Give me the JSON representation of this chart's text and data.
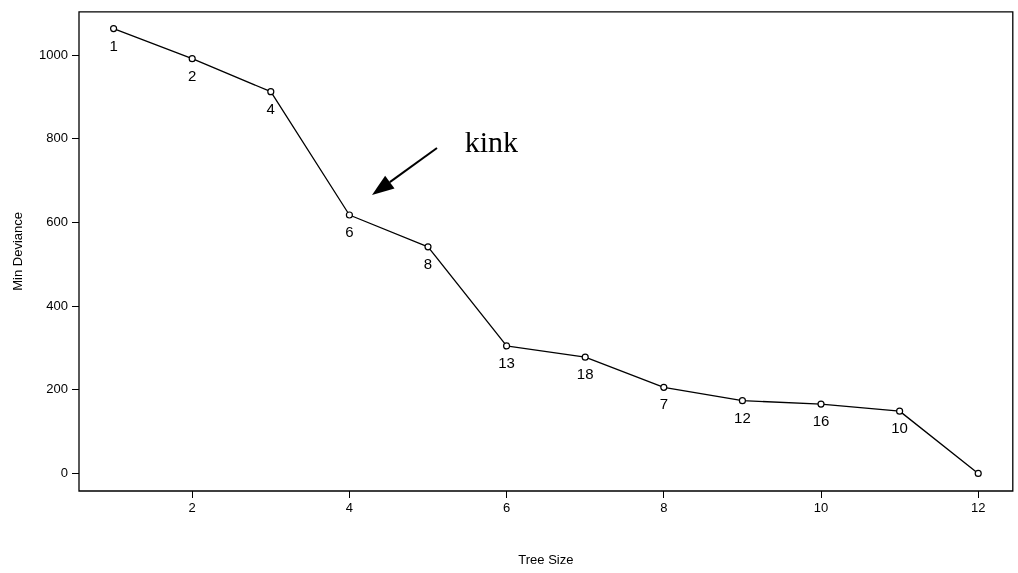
{
  "chart_data": {
    "type": "line",
    "xlabel": "Tree Size",
    "ylabel": "Min Deviance",
    "x": [
      1,
      2,
      3,
      4,
      5,
      6,
      7,
      8,
      9,
      10,
      11,
      12
    ],
    "series": [
      {
        "color": "#000000",
        "values": [
          1064,
          992,
          913,
          618,
          542,
          305,
          278,
          206,
          174,
          166,
          149,
          0
        ]
      }
    ],
    "xlim": [
      0.56,
      12.44
    ],
    "xticks": [
      2,
      4,
      6,
      8,
      10,
      12
    ],
    "ylim": [
      -42,
      1104
    ],
    "yticks": [
      0,
      200,
      400,
      600,
      800,
      1000
    ],
    "grid": false,
    "legend": false,
    "marker": "circle",
    "line_style": "solid",
    "annotations": [
      {
        "text": "1",
        "x": 1,
        "y": 1064
      },
      {
        "text": "2",
        "x": 2,
        "y": 992
      },
      {
        "text": "4",
        "x": 3,
        "y": 913
      },
      {
        "text": "6",
        "x": 4,
        "y": 618
      },
      {
        "text": "8",
        "x": 5,
        "y": 542
      },
      {
        "text": "13",
        "x": 6,
        "y": 305
      },
      {
        "text": "18",
        "x": 7,
        "y": 278
      },
      {
        "text": "7",
        "x": 8,
        "y": 206
      },
      {
        "text": "12",
        "x": 9,
        "y": 174
      },
      {
        "text": "16",
        "x": 10,
        "y": 166
      },
      {
        "text": "10",
        "x": 11,
        "y": 149
      },
      "kink"
    ]
  }
}
